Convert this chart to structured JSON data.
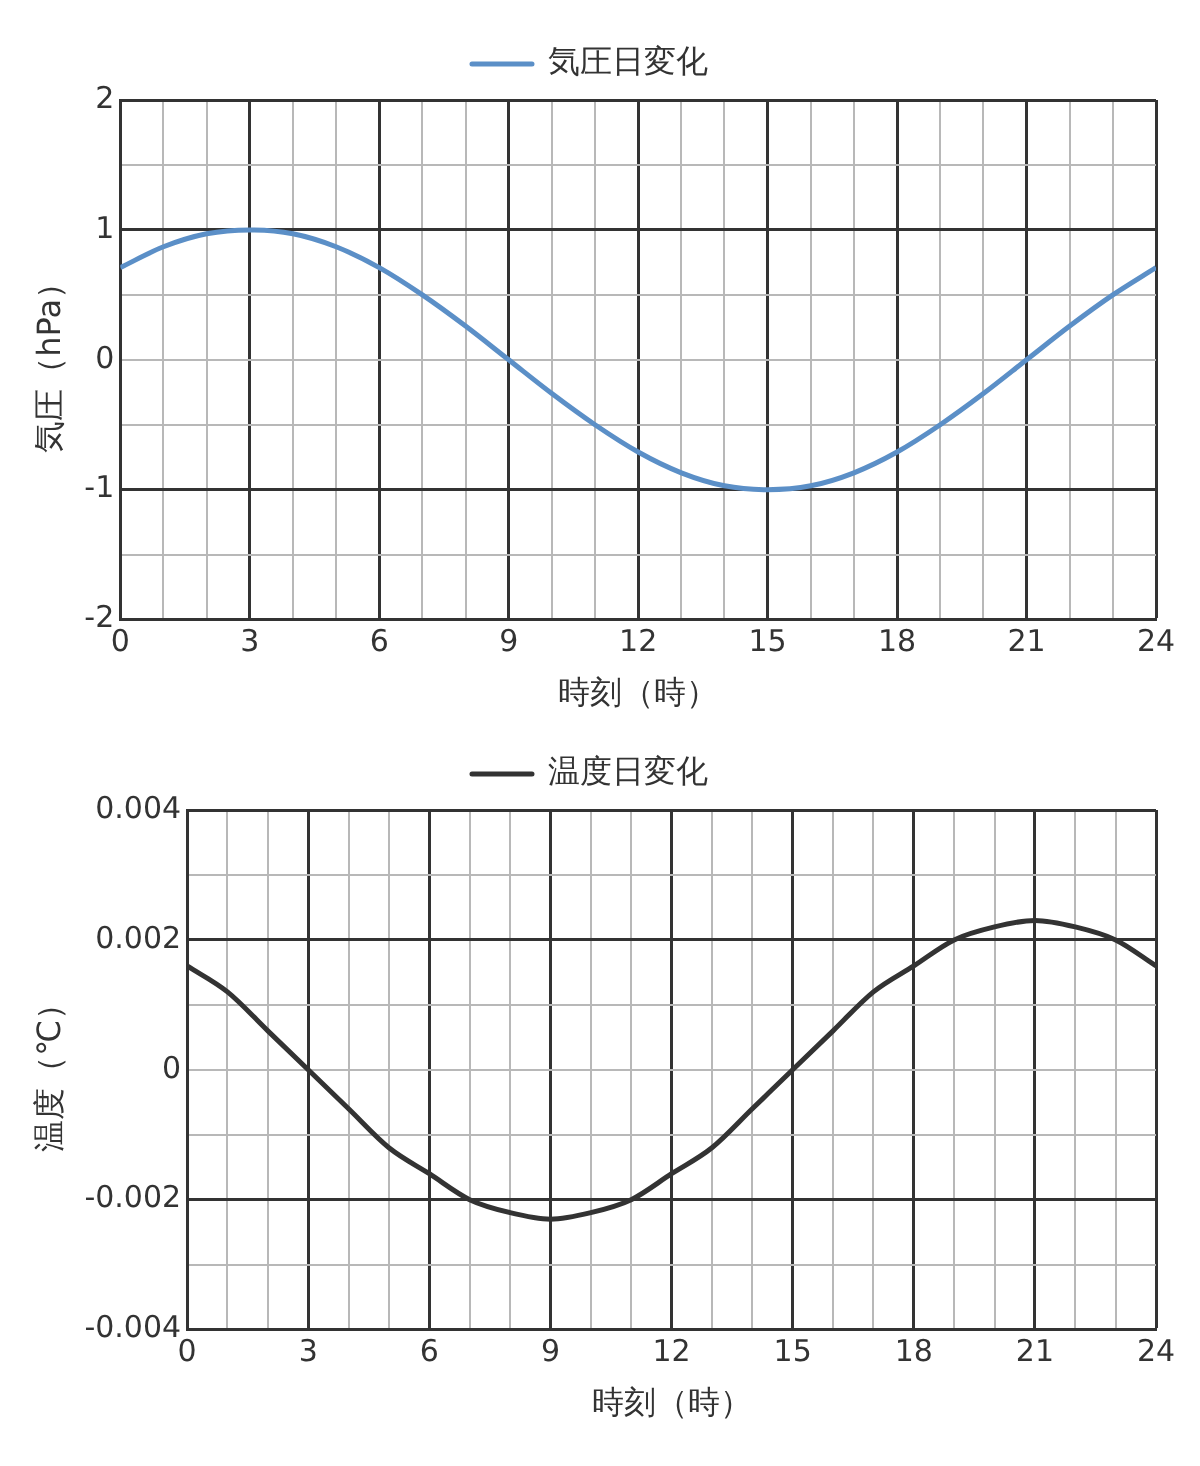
{
  "chart_data": [
    {
      "type": "line",
      "xlabel": "時刻（時）",
      "ylabel": "気圧（hPa）",
      "x": [
        0,
        1,
        2,
        3,
        4,
        5,
        6,
        7,
        8,
        9,
        10,
        11,
        12,
        13,
        14,
        15,
        16,
        17,
        18,
        19,
        20,
        21,
        22,
        23,
        24
      ],
      "series": [
        {
          "name": "気圧日変化",
          "color": "#5b8fc7",
          "values": [
            0.71,
            0.87,
            0.97,
            1,
            0.97,
            0.87,
            0.71,
            0.5,
            0.26,
            0,
            -0.26,
            -0.5,
            -0.71,
            -0.87,
            -0.97,
            -1,
            -0.97,
            -0.87,
            -0.71,
            -0.5,
            -0.26,
            0,
            0.26,
            0.5,
            0.71
          ]
        }
      ],
      "xlim": [
        0,
        24
      ],
      "xticks": [
        0,
        {
          "value": 1,
          "label": null
        },
        {
          "value": 2,
          "label": null
        },
        3,
        {
          "value": 4,
          "label": null
        },
        {
          "value": 5,
          "label": null
        },
        6,
        {
          "value": 7,
          "label": null
        },
        {
          "value": 8,
          "label": null
        },
        9,
        {
          "value": 10,
          "label": null
        },
        {
          "value": 11,
          "label": null
        },
        12,
        {
          "value": 13,
          "label": null
        },
        {
          "value": 14,
          "label": null
        },
        15,
        {
          "value": 16,
          "label": null
        },
        {
          "value": 17,
          "label": null
        },
        18,
        {
          "value": 19,
          "label": null
        },
        {
          "value": 20,
          "label": null
        },
        21,
        {
          "value": 22,
          "label": null
        },
        {
          "value": 23,
          "label": null
        },
        24
      ],
      "ylim": [
        -2,
        2
      ],
      "yticks": [
        -2,
        {
          "value": -1.5,
          "label": null
        },
        -1,
        {
          "value": -0.5,
          "label": null
        },
        0,
        {
          "value": 0.5,
          "label": null
        },
        1,
        {
          "value": 1.5,
          "label": null
        },
        2
      ],
      "grid": true,
      "legend": "top",
      "marker": "none",
      "line_style": "solid"
    },
    {
      "type": "line",
      "xlabel": "時刻（時）",
      "ylabel": "温度（℃）",
      "x": [
        0,
        1,
        2,
        3,
        4,
        5,
        6,
        7,
        8,
        9,
        10,
        11,
        12,
        13,
        14,
        15,
        16,
        17,
        18,
        19,
        20,
        21,
        22,
        23,
        24
      ],
      "series": [
        {
          "name": "温度日変化",
          "color": "#333333",
          "values": [
            0.0016,
            0.0012,
            0.0006,
            0,
            -0.0006,
            -0.0012,
            -0.0016,
            -0.002,
            -0.0022,
            -0.0023,
            -0.0022,
            -0.002,
            -0.0016,
            -0.0012,
            -0.0006,
            0,
            0.0006,
            0.0012,
            0.0016,
            0.002,
            0.0022,
            0.0023,
            0.0022,
            0.002,
            0.0016
          ]
        }
      ],
      "xlim": [
        0,
        24
      ],
      "xticks": [
        0,
        {
          "value": 1,
          "label": null
        },
        {
          "value": 2,
          "label": null
        },
        3,
        {
          "value": 4,
          "label": null
        },
        {
          "value": 5,
          "label": null
        },
        6,
        {
          "value": 7,
          "label": null
        },
        {
          "value": 8,
          "label": null
        },
        9,
        {
          "value": 10,
          "label": null
        },
        {
          "value": 11,
          "label": null
        },
        12,
        {
          "value": 13,
          "label": null
        },
        {
          "value": 14,
          "label": null
        },
        15,
        {
          "value": 16,
          "label": null
        },
        {
          "value": 17,
          "label": null
        },
        18,
        {
          "value": 19,
          "label": null
        },
        {
          "value": 20,
          "label": null
        },
        21,
        {
          "value": 22,
          "label": null
        },
        {
          "value": 23,
          "label": null
        },
        24
      ],
      "ylim": [
        -0.004,
        0.004
      ],
      "yticks": [
        -0.004,
        {
          "value": -0.003,
          "label": null
        },
        -0.002,
        {
          "value": -0.001,
          "label": null
        },
        0,
        {
          "value": 0.001,
          "label": null
        },
        0.002,
        {
          "value": 0.003,
          "label": null
        },
        0.004
      ],
      "grid": true,
      "legend": "top",
      "marker": "none",
      "line_style": "solid"
    }
  ]
}
